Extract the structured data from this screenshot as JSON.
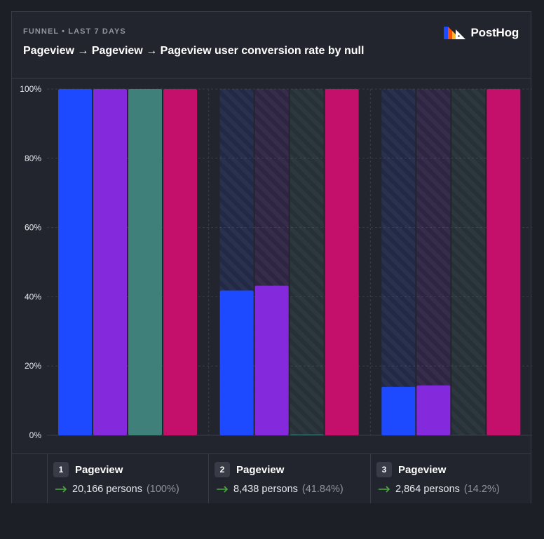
{
  "header": {
    "subtitle": "FUNNEL • LAST 7 DAYS",
    "title": "Pageview → Pageview → Pageview user conversion rate by null",
    "logo_text": "PostHog"
  },
  "colors": {
    "background": "#1d1f27",
    "card": "#23252e",
    "grid": "#3a3d48",
    "arrow": "#4ba93f",
    "series": [
      "#1d4aff",
      "#8529dc",
      "#3f807a",
      "#c5106b"
    ]
  },
  "chart_data": {
    "type": "bar",
    "title": "Pageview → Pageview → Pageview user conversion rate by null",
    "categories": [
      "Pageview",
      "Pageview",
      "Pageview"
    ],
    "y_ticks": [
      "0%",
      "20%",
      "40%",
      "60%",
      "80%",
      "100%"
    ],
    "ylim": [
      0,
      100
    ],
    "grid": true,
    "series": [
      {
        "values": [
          100,
          41.8,
          14.0
        ]
      },
      {
        "values": [
          100,
          43.2,
          14.4
        ]
      },
      {
        "values": [
          100,
          0.2,
          0
        ]
      },
      {
        "values": [
          100,
          100,
          100
        ]
      }
    ]
  },
  "steps": [
    {
      "number": "1",
      "name": "Pageview",
      "persons": "20,166 persons",
      "pct": "(100%)"
    },
    {
      "number": "2",
      "name": "Pageview",
      "persons": "8,438 persons",
      "pct": "(41.84%)"
    },
    {
      "number": "3",
      "name": "Pageview",
      "persons": "2,864 persons",
      "pct": "(14.2%)"
    }
  ]
}
